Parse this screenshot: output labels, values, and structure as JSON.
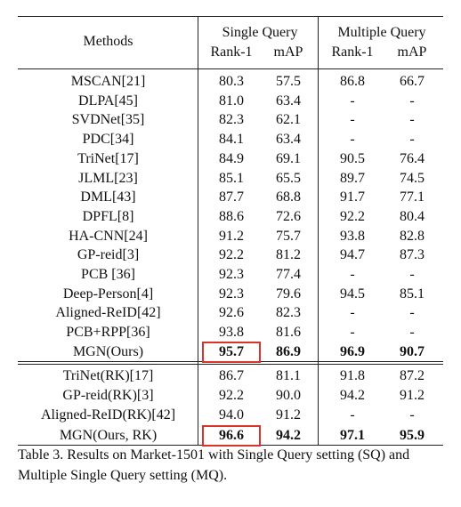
{
  "header": {
    "methods": "Methods",
    "single_query": "Single Query",
    "multiple_query": "Multiple Query",
    "rank1": "Rank-1",
    "map": "mAP"
  },
  "rows": [
    {
      "method": "MSCAN[21]",
      "sq_r1": "80.3",
      "sq_map": "57.5",
      "mq_r1": "86.8",
      "mq_map": "66.7"
    },
    {
      "method": "DLPA[45]",
      "sq_r1": "81.0",
      "sq_map": "63.4",
      "mq_r1": "-",
      "mq_map": "-"
    },
    {
      "method": "SVDNet[35]",
      "sq_r1": "82.3",
      "sq_map": "62.1",
      "mq_r1": "-",
      "mq_map": "-"
    },
    {
      "method": "PDC[34]",
      "sq_r1": "84.1",
      "sq_map": "63.4",
      "mq_r1": "-",
      "mq_map": "-"
    },
    {
      "method": "TriNet[17]",
      "sq_r1": "84.9",
      "sq_map": "69.1",
      "mq_r1": "90.5",
      "mq_map": "76.4"
    },
    {
      "method": "JLML[23]",
      "sq_r1": "85.1",
      "sq_map": "65.5",
      "mq_r1": "89.7",
      "mq_map": "74.5"
    },
    {
      "method": "DML[43]",
      "sq_r1": "87.7",
      "sq_map": "68.8",
      "mq_r1": "91.7",
      "mq_map": "77.1"
    },
    {
      "method": "DPFL[8]",
      "sq_r1": "88.6",
      "sq_map": "72.6",
      "mq_r1": "92.2",
      "mq_map": "80.4"
    },
    {
      "method": "HA-CNN[24]",
      "sq_r1": "91.2",
      "sq_map": "75.7",
      "mq_r1": "93.8",
      "mq_map": "82.8"
    },
    {
      "method": "GP-reid[3]",
      "sq_r1": "92.2",
      "sq_map": "81.2",
      "mq_r1": "94.7",
      "mq_map": "87.3"
    },
    {
      "method": "PCB [36]",
      "sq_r1": "92.3",
      "sq_map": "77.4",
      "mq_r1": "-",
      "mq_map": "-"
    },
    {
      "method": "Deep-Person[4]",
      "sq_r1": "92.3",
      "sq_map": "79.6",
      "mq_r1": "94.5",
      "mq_map": "85.1"
    },
    {
      "method": "Aligned-ReID[42]",
      "sq_r1": "92.6",
      "sq_map": "82.3",
      "mq_r1": "-",
      "mq_map": "-"
    },
    {
      "method": "PCB+RPP[36]",
      "sq_r1": "93.8",
      "sq_map": "81.6",
      "mq_r1": "-",
      "mq_map": "-"
    },
    {
      "method": "MGN(Ours)",
      "sq_r1": "95.7",
      "sq_map": "86.9",
      "mq_r1": "96.9",
      "mq_map": "90.7"
    }
  ],
  "rk_rows": [
    {
      "method": "TriNet(RK)[17]",
      "sq_r1": "86.7",
      "sq_map": "81.1",
      "mq_r1": "91.8",
      "mq_map": "87.2"
    },
    {
      "method": "GP-reid(RK)[3]",
      "sq_r1": "92.2",
      "sq_map": "90.0",
      "mq_r1": "94.2",
      "mq_map": "91.2"
    },
    {
      "method": "Aligned-ReID(RK)[42]",
      "sq_r1": "94.0",
      "sq_map": "91.2",
      "mq_r1": "-",
      "mq_map": "-"
    },
    {
      "method": "MGN(Ours, RK)",
      "sq_r1": "96.6",
      "sq_map": "94.2",
      "mq_r1": "97.1",
      "mq_map": "95.9"
    }
  ],
  "caption": "Table 3. Results on Market-1501 with Single Query setting (SQ) and Multiple Single Query setting (MQ).",
  "highlight_color": "#d9342b"
}
